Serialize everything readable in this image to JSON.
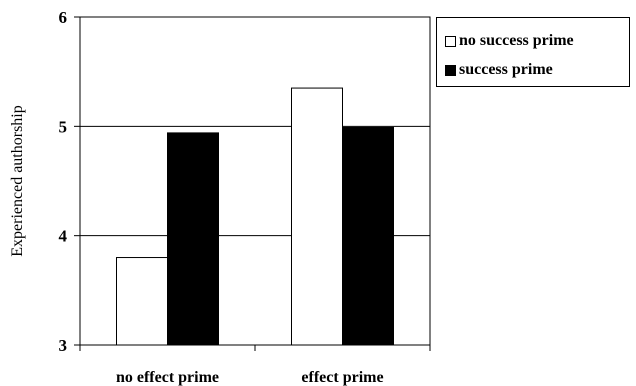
{
  "chart_data": {
    "type": "bar",
    "title": "",
    "xlabel": "",
    "ylabel": "Experienced authorship",
    "ylim": [
      3,
      6
    ],
    "yticks": [
      "3",
      "4",
      "5",
      "6"
    ],
    "grid": true,
    "legend_position": "top-right",
    "categories": [
      "no effect prime",
      "effect prime"
    ],
    "series": [
      {
        "name": "no success prime",
        "values": [
          3.8,
          5.35
        ],
        "color": "#ffffff"
      },
      {
        "name": "success prime",
        "values": [
          4.94,
          4.99
        ],
        "color": "#000000"
      }
    ]
  }
}
